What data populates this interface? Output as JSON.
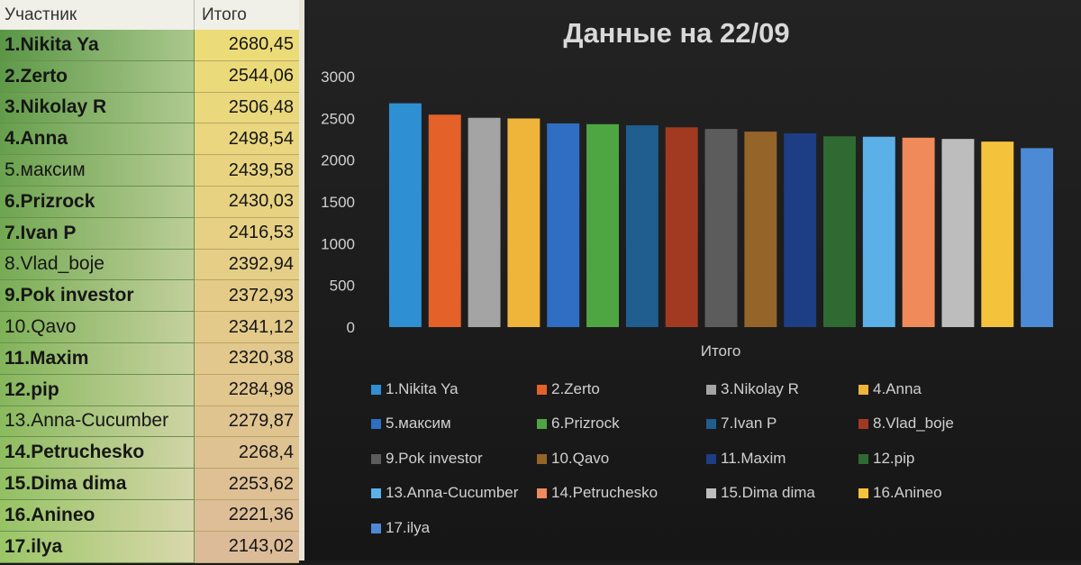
{
  "sheet": {
    "header": {
      "name": "Участник",
      "total": "Итого"
    },
    "rows": [
      {
        "name": "1.Nikita Ya",
        "value": "2680,45",
        "bold": true
      },
      {
        "name": "2.Zerto",
        "value": "2544,06",
        "bold": true
      },
      {
        "name": "3.Nikolay R",
        "value": "2506,48",
        "bold": true
      },
      {
        "name": "4.Anna",
        "value": "2498,54",
        "bold": true
      },
      {
        "name": "5.максим",
        "value": "2439,58",
        "bold": false
      },
      {
        "name": "6.Prizrock",
        "value": "2430,03",
        "bold": true
      },
      {
        "name": "7.Ivan P",
        "value": "2416,53",
        "bold": true
      },
      {
        "name": "8.Vlad_boje",
        "value": "2392,94",
        "bold": false
      },
      {
        "name": "9.Pok investor",
        "value": "2372,93",
        "bold": true
      },
      {
        "name": "10.Qavo",
        "value": "2341,12",
        "bold": false
      },
      {
        "name": "11.Maxim",
        "value": "2320,38",
        "bold": true
      },
      {
        "name": "12.pip",
        "value": "2284,98",
        "bold": true
      },
      {
        "name": "13.Anna-Cucumber",
        "value": "2279,87",
        "bold": false
      },
      {
        "name": "14.Petruchesko",
        "value": "2268,4",
        "bold": true
      },
      {
        "name": "15.Dima dima",
        "value": "2253,62",
        "bold": true
      },
      {
        "name": "16.Anineo",
        "value": "2221,36",
        "bold": true
      },
      {
        "name": "17.ilya",
        "value": "2143,02",
        "bold": true
      }
    ]
  },
  "chart_data": {
    "type": "bar",
    "title": "Данные на 22/09",
    "xlabel": "Итого",
    "ylabel": "",
    "ylim": [
      0,
      3000
    ],
    "yticks": [
      0,
      500,
      1000,
      1500,
      2000,
      2500,
      3000
    ],
    "categories": [
      "Итого"
    ],
    "legend_position": "bottom",
    "grid": false,
    "series": [
      {
        "name": "1.Nikita Ya",
        "values": [
          2680.45
        ],
        "color": "#2f8fd3"
      },
      {
        "name": "2.Zerto",
        "values": [
          2544.06
        ],
        "color": "#e4622a"
      },
      {
        "name": "3.Nikolay R",
        "values": [
          2506.48
        ],
        "color": "#a4a4a4"
      },
      {
        "name": "4.Anna",
        "values": [
          2498.54
        ],
        "color": "#efb43a"
      },
      {
        "name": "5.максим",
        "values": [
          2439.58
        ],
        "color": "#2f6ec2"
      },
      {
        "name": "6.Prizrock",
        "values": [
          2430.03
        ],
        "color": "#4ea643"
      },
      {
        "name": "7.Ivan P",
        "values": [
          2416.53
        ],
        "color": "#1f5e8f"
      },
      {
        "name": "8.Vlad_boje",
        "values": [
          2392.94
        ],
        "color": "#a23a22"
      },
      {
        "name": "9.Pok investor",
        "values": [
          2372.93
        ],
        "color": "#5c5c5c"
      },
      {
        "name": "10.Qavo",
        "values": [
          2341.12
        ],
        "color": "#956428"
      },
      {
        "name": "11.Maxim",
        "values": [
          2320.38
        ],
        "color": "#1d3d84"
      },
      {
        "name": "12.pip",
        "values": [
          2284.98
        ],
        "color": "#2f6a33"
      },
      {
        "name": "13.Anna-Cucumber",
        "values": [
          2279.87
        ],
        "color": "#5bb0e8"
      },
      {
        "name": "14.Petruchesko",
        "values": [
          2268.4
        ],
        "color": "#f08a5b"
      },
      {
        "name": "15.Dima dima",
        "values": [
          2253.62
        ],
        "color": "#bdbdbd"
      },
      {
        "name": "16.Anineo",
        "values": [
          2221.36
        ],
        "color": "#f5c33b"
      },
      {
        "name": "17.ilya",
        "values": [
          2143.02
        ],
        "color": "#4d8ad5"
      }
    ]
  }
}
